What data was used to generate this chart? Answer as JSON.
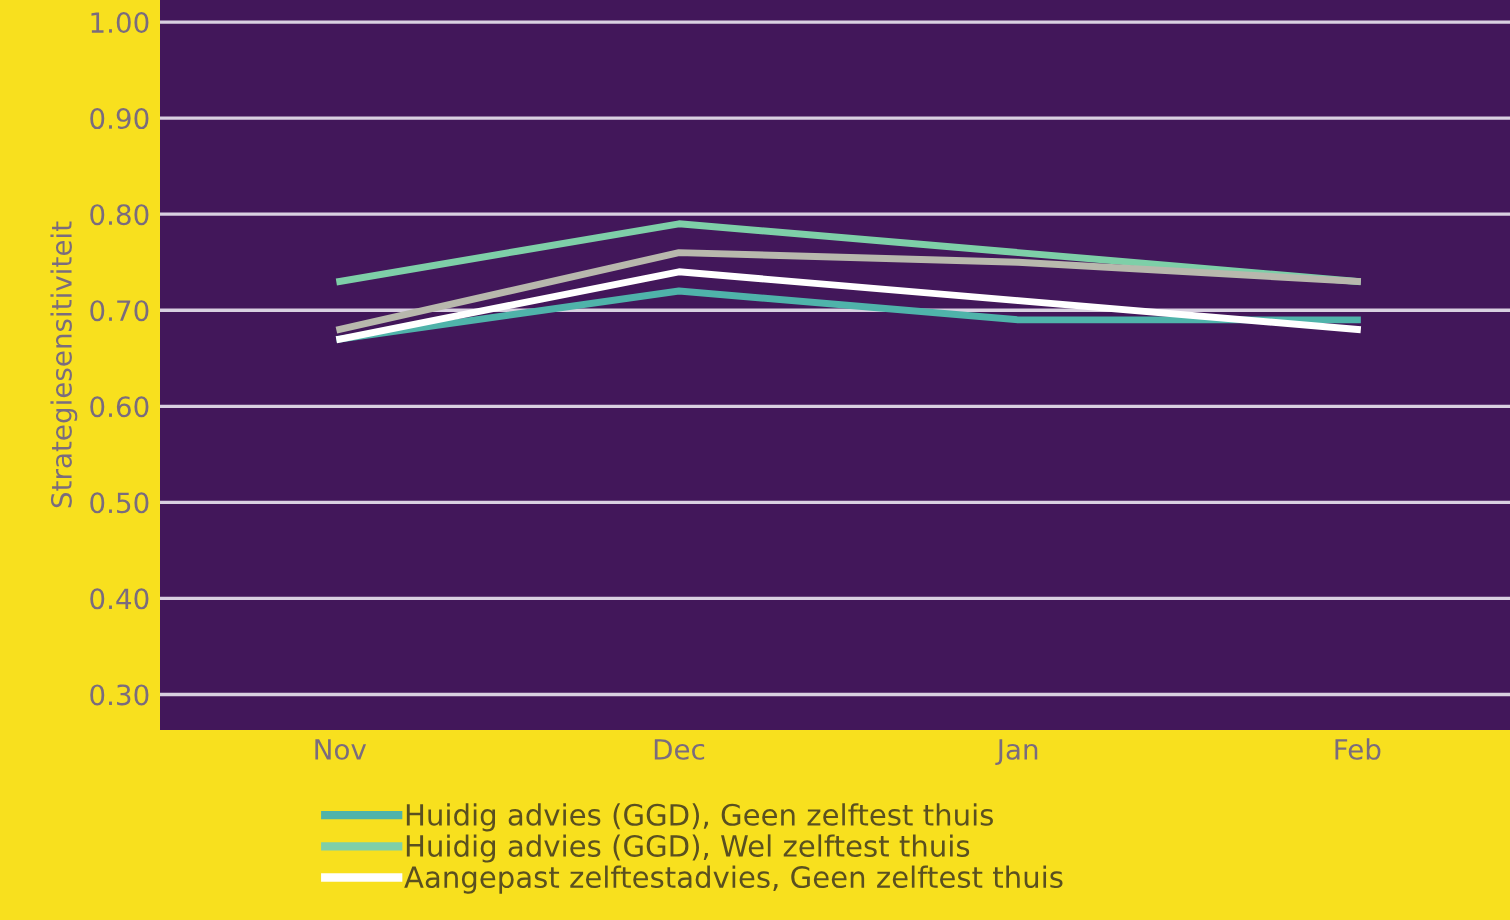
{
  "chart_data": {
    "type": "line",
    "ylabel": "Strategiesensitiviteit",
    "categories": [
      "Nov",
      "Dec",
      "Jan",
      "Feb"
    ],
    "series": [
      {
        "name": "Huidig advies (GGD), Geen zelftest thuis",
        "color": "#4fb3aa",
        "values": [
          0.67,
          0.72,
          0.69,
          0.69
        ]
      },
      {
        "name": "Huidig advies (GGD), Wel zelftest thuis",
        "color": "#7ecfa8",
        "values": [
          0.73,
          0.79,
          0.76,
          0.73
        ]
      },
      {
        "name": "Aangepast zelftestadvies, Geen zelftest thuis",
        "color": "#ffffff",
        "values": [
          0.67,
          0.74,
          0.71,
          0.68
        ]
      },
      {
        "color": "#b8b8ad",
        "values": [
          0.68,
          0.76,
          0.75,
          0.73
        ]
      }
    ],
    "ylim": [
      0.263,
      1.023
    ],
    "yticks": [
      {
        "value": 0.3,
        "label": "0.30"
      },
      {
        "value": 0.4,
        "label": "0.40"
      },
      {
        "value": 0.5,
        "label": "0.50"
      },
      {
        "value": 0.6,
        "label": "0.60"
      },
      {
        "value": 0.7,
        "label": "0.70"
      },
      {
        "value": 0.8,
        "label": "0.80"
      },
      {
        "value": 0.9,
        "label": "0.90"
      },
      {
        "value": 1.0,
        "label": "1.00"
      }
    ],
    "grid": "y",
    "legend": "bottom",
    "marker": "none",
    "line_style": "solid"
  }
}
